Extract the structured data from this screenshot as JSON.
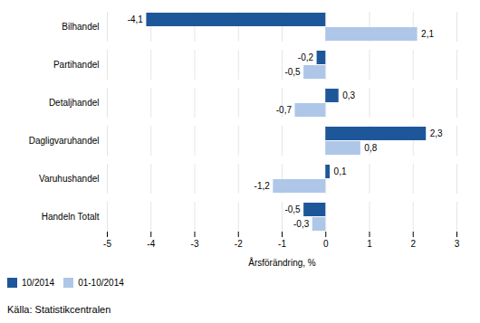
{
  "chart_data": {
    "type": "bar",
    "orientation": "horizontal",
    "categories": [
      "Bilhandel",
      "Partihandel",
      "Detaljhandel",
      "Dagligvaruhandel",
      "Varuhushandel",
      "Handeln Totalt"
    ],
    "series": [
      {
        "name": "10/2014",
        "color": "#1e5799",
        "values": [
          -4.1,
          -0.2,
          0.3,
          2.3,
          0.1,
          -0.5
        ],
        "value_labels": [
          "-4,1",
          "-0,2",
          "0,3",
          "2,3",
          "0,1",
          "-0,5"
        ]
      },
      {
        "name": "01-10/2014",
        "color": "#aec6e8",
        "values": [
          2.1,
          -0.5,
          -0.7,
          0.8,
          -1.2,
          -0.3
        ],
        "value_labels": [
          "2,1",
          "-0,5",
          "-0,7",
          "0,8",
          "-1,2",
          "-0,3"
        ]
      }
    ],
    "xlabel": "Årsförändring, %",
    "caption": "Källa:  Statistikcentralen",
    "xlim": [
      -5,
      3
    ],
    "xticks": [
      -5,
      -4,
      -3,
      -2,
      -1,
      0,
      1,
      2,
      3
    ],
    "grid": true,
    "legend": "lower left",
    "data_labels": true
  }
}
